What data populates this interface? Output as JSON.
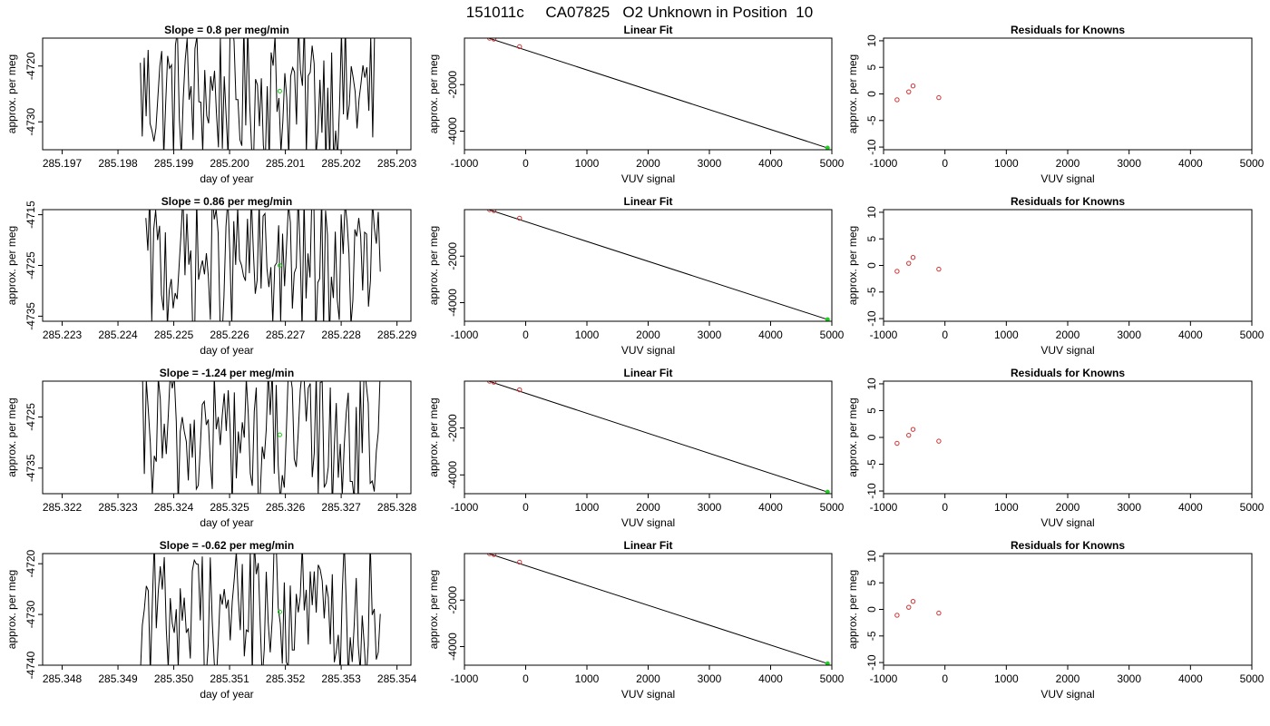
{
  "figure_title": "151011c     CA07825   O2 Unknown in Position  10",
  "colors": {
    "known": "#cc3333",
    "unknown": "#22cc22",
    "line": "#000000"
  },
  "chart_data": [
    {
      "type": "line",
      "row": 0,
      "panel": "time-series",
      "title": "Slope =  0.8  per meg/min",
      "xlabel": "day of year",
      "ylabel": "approx. per meg",
      "xlim": [
        285.19665,
        285.20325
      ],
      "ylim": [
        -4735,
        -4715
      ],
      "xticks": [
        285.197,
        285.198,
        285.199,
        285.2,
        285.201,
        285.202,
        285.203
      ],
      "xtick_labels": [
        "285.197",
        "285.198",
        "285.199",
        "285.200",
        "285.201",
        "285.202",
        "285.203"
      ],
      "yticks": [
        -4720,
        -4730
      ],
      "ytick_labels": [
        "-4720",
        "-4730"
      ],
      "data_range": [
        285.1984,
        285.2026
      ],
      "marker": {
        "x": 285.2009,
        "y": -4724.5
      }
    },
    {
      "type": "scatter",
      "row": 0,
      "panel": "linear-fit",
      "title": "Linear Fit",
      "xlabel": "VUV signal",
      "ylabel": "approx. per meg",
      "xlim": [
        -1000,
        5000
      ],
      "ylim": [
        -4800,
        0
      ],
      "xticks": [
        -1000,
        0,
        1000,
        2000,
        3000,
        4000,
        5000
      ],
      "xtick_labels": [
        "-1000",
        "0",
        "1000",
        "2000",
        "3000",
        "4000",
        "5000"
      ],
      "yticks": [
        -2000,
        -4000
      ],
      "ytick_labels": [
        "-2000",
        "-4000"
      ],
      "knowns": [
        {
          "x": -780,
          "y": 150
        },
        {
          "x": -590,
          "y": 0
        },
        {
          "x": -520,
          "y": -40
        },
        {
          "x": -100,
          "y": -370
        }
      ],
      "unknown": {
        "x": 4930,
        "y": -4724
      },
      "fit_line": [
        [
          -780,
          150
        ],
        [
          4930,
          -4724
        ]
      ]
    },
    {
      "type": "scatter",
      "row": 0,
      "panel": "residuals",
      "title": "Residuals for Knowns",
      "xlabel": "VUV signal",
      "ylabel": "approx. per meg",
      "xlim": [
        -1000,
        5000
      ],
      "ylim": [
        -10.5,
        10.5
      ],
      "xticks": [
        -1000,
        0,
        1000,
        2000,
        3000,
        4000,
        5000
      ],
      "xtick_labels": [
        "-1000",
        "0",
        "1000",
        "2000",
        "3000",
        "4000",
        "5000"
      ],
      "yticks": [
        10,
        5,
        0,
        -5,
        -10
      ],
      "ytick_labels": [
        "10",
        "5",
        "0",
        "-5",
        "-10"
      ],
      "points": [
        {
          "x": -780,
          "y": -1.1
        },
        {
          "x": -590,
          "y": 0.4
        },
        {
          "x": -520,
          "y": 1.5
        },
        {
          "x": -100,
          "y": -0.7
        }
      ]
    },
    {
      "type": "line",
      "row": 1,
      "panel": "time-series",
      "title": "Slope =  0.86  per meg/min",
      "xlabel": "day of year",
      "ylabel": "approx. per meg",
      "xlim": [
        285.22265,
        285.22925
      ],
      "ylim": [
        -4736,
        -4714
      ],
      "xticks": [
        285.223,
        285.224,
        285.225,
        285.226,
        285.227,
        285.228,
        285.229
      ],
      "xtick_labels": [
        "285.223",
        "285.224",
        "285.225",
        "285.226",
        "285.227",
        "285.228",
        "285.229"
      ],
      "yticks": [
        -4715,
        -4725,
        -4735
      ],
      "ytick_labels": [
        "-4715",
        "-4725",
        "-4735"
      ],
      "data_range": [
        285.2245,
        285.2287
      ],
      "marker": {
        "x": 285.2269,
        "y": -4725
      }
    },
    {
      "type": "scatter",
      "row": 1,
      "panel": "linear-fit",
      "title": "Linear Fit",
      "xlabel": "VUV signal",
      "ylabel": "approx. per meg",
      "xlim": [
        -1000,
        5000
      ],
      "ylim": [
        -4800,
        0
      ],
      "xticks": [
        -1000,
        0,
        1000,
        2000,
        3000,
        4000,
        5000
      ],
      "xtick_labels": [
        "-1000",
        "0",
        "1000",
        "2000",
        "3000",
        "4000",
        "5000"
      ],
      "yticks": [
        -2000,
        -4000
      ],
      "ytick_labels": [
        "-2000",
        "-4000"
      ],
      "knowns": [
        {
          "x": -780,
          "y": 150
        },
        {
          "x": -590,
          "y": 0
        },
        {
          "x": -520,
          "y": -40
        },
        {
          "x": -100,
          "y": -370
        }
      ],
      "unknown": {
        "x": 4930,
        "y": -4725
      },
      "fit_line": [
        [
          -780,
          150
        ],
        [
          4930,
          -4725
        ]
      ]
    },
    {
      "type": "scatter",
      "row": 1,
      "panel": "residuals",
      "title": "Residuals for Knowns",
      "xlabel": "VUV signal",
      "ylabel": "approx. per meg",
      "xlim": [
        -1000,
        5000
      ],
      "ylim": [
        -10.5,
        10.5
      ],
      "xticks": [
        -1000,
        0,
        1000,
        2000,
        3000,
        4000,
        5000
      ],
      "xtick_labels": [
        "-1000",
        "0",
        "1000",
        "2000",
        "3000",
        "4000",
        "5000"
      ],
      "yticks": [
        10,
        5,
        0,
        -5,
        -10
      ],
      "ytick_labels": [
        "10",
        "5",
        "0",
        "-5",
        "-10"
      ],
      "points": [
        {
          "x": -780,
          "y": -1.1
        },
        {
          "x": -590,
          "y": 0.4
        },
        {
          "x": -520,
          "y": 1.5
        },
        {
          "x": -100,
          "y": -0.7
        }
      ]
    },
    {
      "type": "line",
      "row": 2,
      "panel": "time-series",
      "title": "Slope =  -1.24  per meg/min",
      "xlabel": "day of year",
      "ylabel": "approx. per meg",
      "xlim": [
        285.32165,
        285.32825
      ],
      "ylim": [
        -4740,
        -4718
      ],
      "xticks": [
        285.322,
        285.323,
        285.324,
        285.325,
        285.326,
        285.327,
        285.328
      ],
      "xtick_labels": [
        "285.322",
        "285.323",
        "285.324",
        "285.325",
        "285.326",
        "285.327",
        "285.328"
      ],
      "yticks": [
        -4725,
        -4735
      ],
      "ytick_labels": [
        "-4725",
        "-4735"
      ],
      "data_range": [
        285.3234,
        285.3277
      ],
      "marker": {
        "x": 285.3259,
        "y": -4728.5
      }
    },
    {
      "type": "scatter",
      "row": 2,
      "panel": "linear-fit",
      "title": "Linear Fit",
      "xlabel": "VUV signal",
      "ylabel": "approx. per meg",
      "xlim": [
        -1000,
        5000
      ],
      "ylim": [
        -4800,
        0
      ],
      "xticks": [
        -1000,
        0,
        1000,
        2000,
        3000,
        4000,
        5000
      ],
      "xtick_labels": [
        "-1000",
        "0",
        "1000",
        "2000",
        "3000",
        "4000",
        "5000"
      ],
      "yticks": [
        -2000,
        -4000
      ],
      "ytick_labels": [
        "-2000",
        "-4000"
      ],
      "knowns": [
        {
          "x": -780,
          "y": 150
        },
        {
          "x": -590,
          "y": 0
        },
        {
          "x": -520,
          "y": -40
        },
        {
          "x": -100,
          "y": -370
        }
      ],
      "unknown": {
        "x": 4930,
        "y": -4729
      },
      "fit_line": [
        [
          -780,
          150
        ],
        [
          4930,
          -4729
        ]
      ]
    },
    {
      "type": "scatter",
      "row": 2,
      "panel": "residuals",
      "title": "Residuals for Knowns",
      "xlabel": "VUV signal",
      "ylabel": "approx. per meg",
      "xlim": [
        -1000,
        5000
      ],
      "ylim": [
        -10.5,
        10.5
      ],
      "xticks": [
        -1000,
        0,
        1000,
        2000,
        3000,
        4000,
        5000
      ],
      "xtick_labels": [
        "-1000",
        "0",
        "1000",
        "2000",
        "3000",
        "4000",
        "5000"
      ],
      "yticks": [
        10,
        5,
        0,
        -5,
        -10
      ],
      "ytick_labels": [
        "10",
        "5",
        "0",
        "-5",
        "-10"
      ],
      "points": [
        {
          "x": -780,
          "y": -1.1
        },
        {
          "x": -590,
          "y": 0.4
        },
        {
          "x": -520,
          "y": 1.5
        },
        {
          "x": -100,
          "y": -0.7
        }
      ]
    },
    {
      "type": "line",
      "row": 3,
      "panel": "time-series",
      "title": "Slope =  -0.62  per meg/min",
      "xlabel": "day of year",
      "ylabel": "approx. per meg",
      "xlim": [
        285.34765,
        285.35425
      ],
      "ylim": [
        -4740,
        -4718
      ],
      "xticks": [
        285.348,
        285.349,
        285.35,
        285.351,
        285.352,
        285.353,
        285.354
      ],
      "xtick_labels": [
        "285.348",
        "285.349",
        "285.350",
        "285.351",
        "285.352",
        "285.353",
        "285.354"
      ],
      "yticks": [
        -4720,
        -4730,
        -4740
      ],
      "ytick_labels": [
        "-4720",
        "-4730",
        "-4740"
      ],
      "data_range": [
        285.3494,
        285.3537
      ],
      "marker": {
        "x": 285.3519,
        "y": -4729.5
      }
    },
    {
      "type": "scatter",
      "row": 3,
      "panel": "linear-fit",
      "title": "Linear Fit",
      "xlabel": "VUV signal",
      "ylabel": "approx. per meg",
      "xlim": [
        -1000,
        5000
      ],
      "ylim": [
        -4800,
        0
      ],
      "xticks": [
        -1000,
        0,
        1000,
        2000,
        3000,
        4000,
        5000
      ],
      "xtick_labels": [
        "-1000",
        "0",
        "1000",
        "2000",
        "3000",
        "4000",
        "5000"
      ],
      "yticks": [
        -2000,
        -4000
      ],
      "ytick_labels": [
        "-2000",
        "-4000"
      ],
      "knowns": [
        {
          "x": -780,
          "y": 150
        },
        {
          "x": -590,
          "y": 0
        },
        {
          "x": -520,
          "y": -40
        },
        {
          "x": -100,
          "y": -370
        }
      ],
      "unknown": {
        "x": 4930,
        "y": -4730
      },
      "fit_line": [
        [
          -780,
          150
        ],
        [
          4930,
          -4730
        ]
      ]
    },
    {
      "type": "scatter",
      "row": 3,
      "panel": "residuals",
      "title": "Residuals for Knowns",
      "xlabel": "VUV signal",
      "ylabel": "approx. per meg",
      "xlim": [
        -1000,
        5000
      ],
      "ylim": [
        -10.5,
        10.5
      ],
      "xticks": [
        -1000,
        0,
        1000,
        2000,
        3000,
        4000,
        5000
      ],
      "xtick_labels": [
        "-1000",
        "0",
        "1000",
        "2000",
        "3000",
        "4000",
        "5000"
      ],
      "yticks": [
        10,
        5,
        0,
        -5,
        -10
      ],
      "ytick_labels": [
        "10",
        "5",
        "0",
        "-5",
        "-10"
      ],
      "points": [
        {
          "x": -780,
          "y": -1.1
        },
        {
          "x": -590,
          "y": 0.4
        },
        {
          "x": -520,
          "y": 1.5
        },
        {
          "x": -100,
          "y": -0.7
        }
      ]
    }
  ]
}
